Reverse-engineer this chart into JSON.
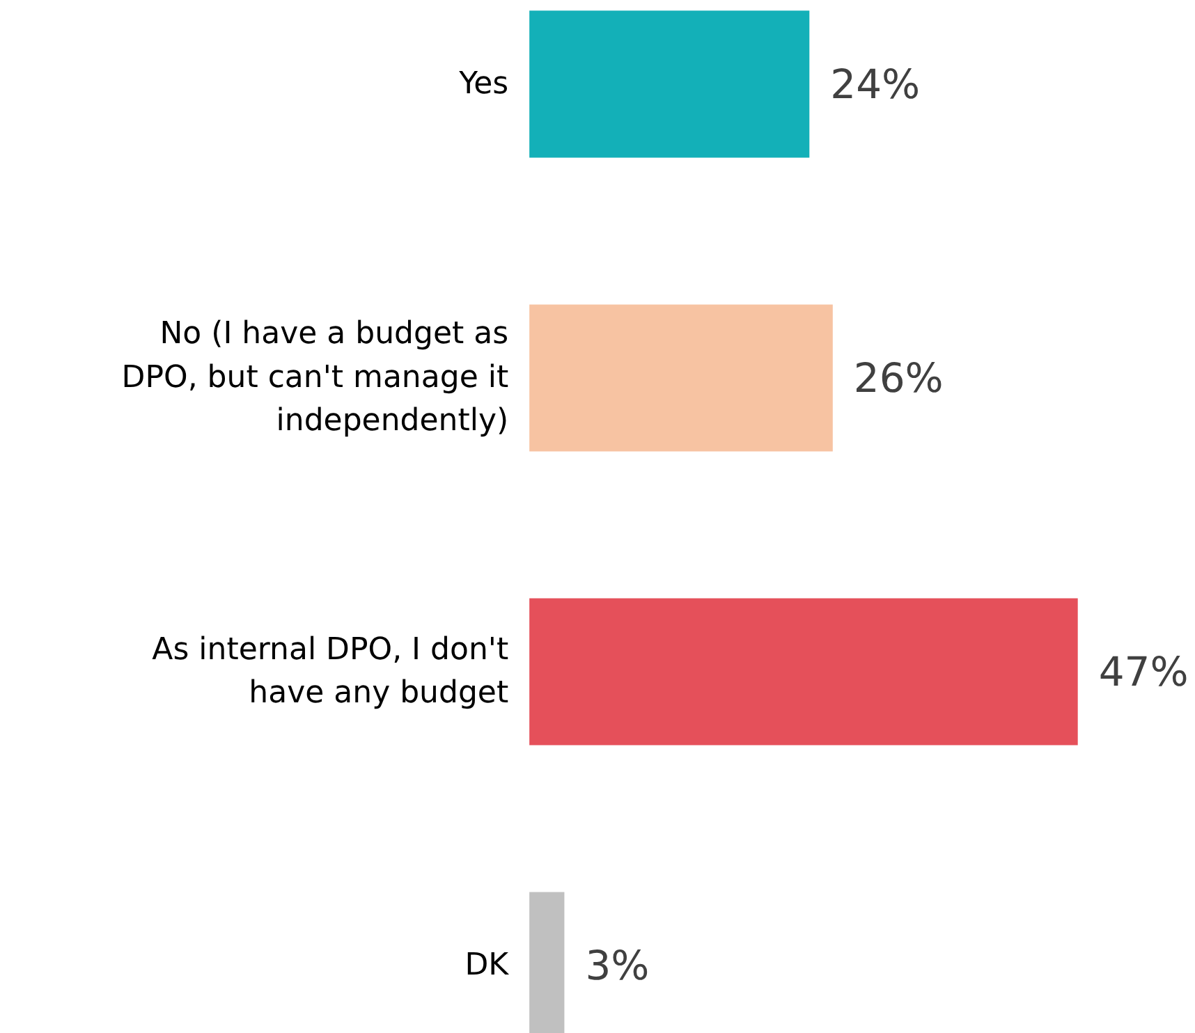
{
  "chart_data": {
    "type": "bar",
    "orientation": "horizontal",
    "categories": [
      "Yes",
      "No (I have a budget as DPO, but can't manage it independently)",
      "As internal DPO, I don't have any budget",
      "DK"
    ],
    "values": [
      24,
      26,
      47,
      3
    ],
    "colors": [
      "#13b0b8",
      "#f7c3a2",
      "#e5505a",
      "#c0c0c0"
    ],
    "value_labels": [
      "24%",
      "26%",
      "47%",
      "3%"
    ]
  }
}
